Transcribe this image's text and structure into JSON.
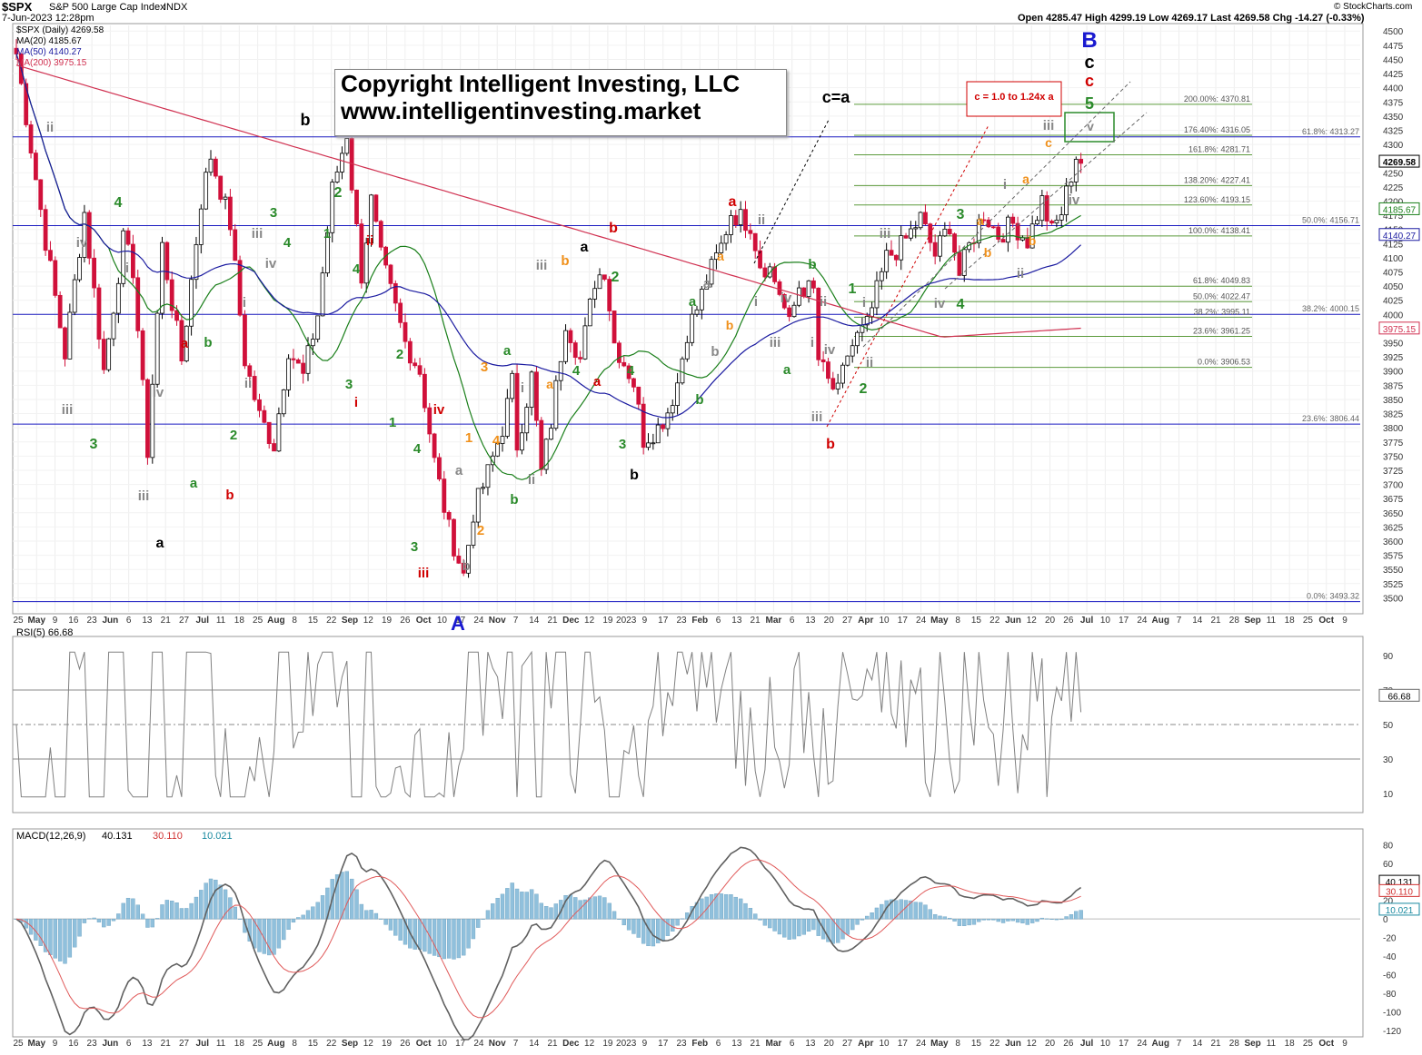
{
  "header": {
    "symbol": "$SPX",
    "name": "S&P 500 Large Cap Index",
    "exchange": "INDX",
    "date_line": "7-Jun-2023 12:28pm",
    "ohlc": "Open 4285.47  High 4299.19  Low 4269.17  Last 4269.58  Chg -14.27 (-0.33%)",
    "credit": "© StockCharts.com"
  },
  "legend": {
    "main": "$SPX (Daily) 4269.58",
    "ma20": "MA(20) 4185.67",
    "ma50": "MA(50) 4140.27",
    "ma200": "MA(200) 3975.15"
  },
  "colors": {
    "up": "#ffffff",
    "down": "#d0103a",
    "ma20": "#1a7f1a",
    "ma50": "#1a1aa0",
    "ma200": "#d03050",
    "fib": "#5b9a3b",
    "hline": "#1a1ac0",
    "rsi": "#808080",
    "macd": "#606060",
    "signal": "#e05a5a",
    "hist": "#90c0dc"
  },
  "copyright": {
    "line1": "Copyright Intelligent Investing, LLC",
    "line2": "www.intelligentinvesting.market"
  },
  "chart_data": [
    {
      "type": "candlestick",
      "title": "$SPX (Daily) 4269.58",
      "ylim": [
        3475,
        4510
      ],
      "y_ticks": [
        3500,
        3525,
        3550,
        3575,
        3600,
        3625,
        3650,
        3675,
        3700,
        3725,
        3750,
        3775,
        3800,
        3825,
        3850,
        3875,
        3900,
        3925,
        3950,
        3975,
        4000,
        4025,
        4050,
        4075,
        4100,
        4125,
        4150,
        4175,
        4200,
        4225,
        4250,
        4275,
        4300,
        4325,
        4350,
        4375,
        4400,
        4425,
        4450,
        4475,
        4500
      ],
      "x_labels": [
        "25",
        "May",
        "9",
        "16",
        "23",
        "Jun",
        "6",
        "13",
        "21",
        "27",
        "Jul",
        "11",
        "18",
        "25",
        "Aug",
        "8",
        "15",
        "22",
        "Sep",
        "12",
        "19",
        "26",
        "Oct",
        "10",
        "17",
        "24",
        "Nov",
        "7",
        "14",
        "21",
        "Dec",
        "12",
        "19",
        "2023",
        "9",
        "17",
        "23",
        "Feb",
        "6",
        "13",
        "21",
        "Mar",
        "6",
        "13",
        "20",
        "27",
        "Apr",
        "10",
        "17",
        "24",
        "May",
        "8",
        "15",
        "22",
        "Jun",
        "12",
        "20",
        "26",
        "Jul",
        "10",
        "17",
        "24",
        "Aug",
        "7",
        "14",
        "21",
        "28",
        "Sep",
        "11",
        "18",
        "25",
        "Oct",
        "9"
      ],
      "price_path": [
        [
          0,
          4460
        ],
        [
          6,
          4130
        ],
        [
          10,
          3930
        ],
        [
          14,
          4180
        ],
        [
          18,
          3900
        ],
        [
          22,
          4130
        ],
        [
          24,
          4080
        ],
        [
          27,
          3760
        ],
        [
          30,
          4120
        ],
        [
          34,
          3920
        ],
        [
          38,
          4200
        ],
        [
          40,
          4280
        ],
        [
          44,
          4160
        ],
        [
          47,
          3920
        ],
        [
          50,
          3820
        ],
        [
          53,
          3770
        ],
        [
          56,
          3940
        ],
        [
          59,
          3890
        ],
        [
          62,
          4000
        ],
        [
          65,
          4220
        ],
        [
          68,
          4320
        ],
        [
          69,
          4230
        ],
        [
          71,
          4070
        ],
        [
          73,
          4200
        ],
        [
          75,
          4100
        ],
        [
          80,
          3950
        ],
        [
          83,
          3900
        ],
        [
          86,
          3740
        ],
        [
          89,
          3620
        ],
        [
          92,
          3540
        ],
        [
          94,
          3650
        ],
        [
          97,
          3720
        ],
        [
          100,
          3800
        ],
        [
          102,
          3880
        ],
        [
          103,
          3770
        ],
        [
          106,
          3890
        ],
        [
          108,
          3720
        ],
        [
          110,
          3810
        ],
        [
          113,
          3990
        ],
        [
          116,
          3920
        ],
        [
          119,
          4060
        ],
        [
          121,
          4080
        ],
        [
          123,
          3950
        ],
        [
          127,
          3880
        ],
        [
          129,
          3780
        ],
        [
          132,
          3800
        ],
        [
          134,
          3830
        ],
        [
          136,
          3880
        ],
        [
          138,
          3970
        ],
        [
          140,
          4010
        ],
        [
          142,
          4060
        ],
        [
          145,
          4120
        ],
        [
          147,
          4180
        ],
        [
          151,
          4160
        ],
        [
          153,
          4090
        ],
        [
          155,
          4080
        ],
        [
          157,
          4040
        ],
        [
          159,
          3980
        ],
        [
          161,
          4050
        ],
        [
          164,
          4040
        ],
        [
          165,
          3920
        ],
        [
          167,
          3880
        ],
        [
          169,
          3860
        ],
        [
          171,
          3930
        ],
        [
          173,
          3960
        ],
        [
          175,
          3980
        ],
        [
          177,
          4040
        ],
        [
          179,
          4100
        ],
        [
          182,
          4120
        ],
        [
          186,
          4170
        ],
        [
          189,
          4105
        ],
        [
          192,
          4160
        ],
        [
          194,
          4070
        ],
        [
          196,
          4120
        ],
        [
          199,
          4180
        ],
        [
          202,
          4140
        ],
        [
          205,
          4160
        ],
        [
          208,
          4130
        ],
        [
          211,
          4200
        ],
        [
          213,
          4145
        ],
        [
          215,
          4180
        ],
        [
          218,
          4280
        ],
        [
          219,
          4270
        ]
      ],
      "horizontal_levels": [
        {
          "value": 4313.27,
          "label": "61.8%: 4313.27"
        },
        {
          "value": 4156.71,
          "label": "50.0%: 4156.71"
        },
        {
          "value": 4000.15,
          "label": "38.2%: 4000.15"
        },
        {
          "value": 3806.44,
          "label": "23.6%: 3806.44"
        },
        {
          "value": 3493.32,
          "label": "0.0%: 3493.32"
        }
      ],
      "fib_levels": [
        {
          "value": 4370.81,
          "label": "200.00%: 4370.81"
        },
        {
          "value": 4316.05,
          "label": "176.40%: 4316.05"
        },
        {
          "value": 4281.71,
          "label": "161.8%: 4281.71"
        },
        {
          "value": 4227.41,
          "label": "138.20%: 4227.41"
        },
        {
          "value": 4193.15,
          "label": "123.60%: 4193.15"
        },
        {
          "value": 4138.41,
          "label": "100.0%: 4138.41"
        },
        {
          "value": 4049.83,
          "label": "61.8%: 4049.83"
        },
        {
          "value": 4022.47,
          "label": "50.0%: 4022.47"
        },
        {
          "value": 3995.11,
          "label": "38.2%: 3995.11"
        },
        {
          "value": 3961.25,
          "label": "23.6%: 3961.25"
        },
        {
          "value": 3906.53,
          "label": "0.0%: 3906.53"
        }
      ],
      "last_tags": [
        "4269.58",
        "4185.67",
        "4140.27",
        "3975.15"
      ],
      "annotations": [
        "B",
        "c",
        "c",
        "5",
        "c=a",
        "c = 1.0 to 1.24x a",
        "b",
        "a",
        "a",
        "b",
        "b",
        "iii",
        "v",
        "iv",
        "iv",
        "ii",
        "i",
        "ii",
        "2",
        "1",
        "iii",
        "ii",
        "3",
        "4",
        "iii",
        "iv",
        "a",
        "b",
        "c",
        "b",
        "a",
        "iii",
        "3",
        "4",
        "A",
        "a",
        "b",
        "c",
        "1",
        "2",
        "3",
        "4",
        "5",
        "i",
        "ii",
        "iii",
        "iv",
        "v",
        "a",
        "b",
        "b",
        "a"
      ]
    },
    {
      "type": "line",
      "title": "RSI(5) 66.68",
      "ylim": [
        0,
        100
      ],
      "y_ticks": [
        10,
        30,
        50,
        70,
        90
      ],
      "levels": [
        70,
        50,
        30
      ],
      "last_tag": "66.68"
    },
    {
      "type": "line",
      "title": "MACD(12,26,9)",
      "values_legend": [
        "40.131",
        "30.110",
        "10.021"
      ],
      "series_names": [
        "MACD(12,26,9)"
      ],
      "ylim": [
        -125,
        95
      ],
      "y_ticks": [
        -120,
        -100,
        -80,
        -60,
        -40,
        -20,
        0,
        20,
        40,
        60,
        80
      ],
      "last_tags": [
        "40.131",
        "30.110",
        "10.021"
      ]
    }
  ]
}
